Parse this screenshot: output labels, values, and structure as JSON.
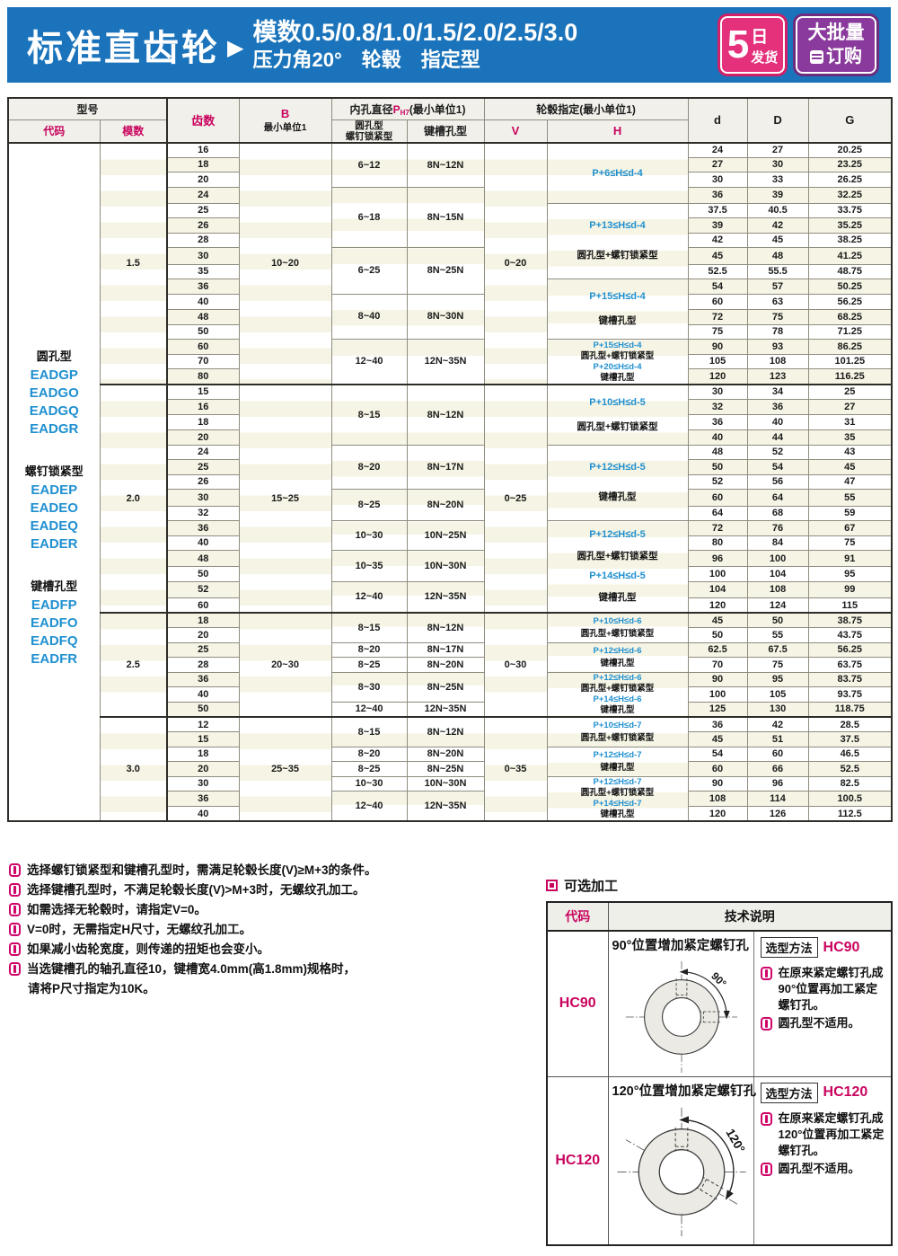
{
  "banner": {
    "title": "标准直齿轮",
    "arrow": "▶",
    "line1": "模数0.5/0.8/1.0/1.5/2.0/2.5/3.0",
    "line2": "压力角20°　轮毂　指定型",
    "badge_day": {
      "big": "5",
      "top": "日",
      "bottom": "发货"
    },
    "badge_bulk": {
      "line1": "大批量",
      "line2": "订购"
    }
  },
  "table": {
    "header": {
      "model": "型号",
      "code": "代码",
      "module": "模数",
      "teeth": "齿数",
      "b_top": "B",
      "b_bottom": "最小单位1",
      "hole_title_pre": "内孔直径",
      "hole_p": "P",
      "hole_sub": "H7",
      "hole_title_post": "(最小单位1)",
      "hole_col1a": "圆孔型",
      "hole_col1b": "螺钉锁紧型",
      "hole_col2": "键槽孔型",
      "hub_title": "轮毂指定(最小单位1)",
      "v": "V",
      "h": "H",
      "d": "d",
      "D": "D",
      "G": "G"
    },
    "code_groups": [
      {
        "title": "圆孔型",
        "codes": [
          "EADGP",
          "EADGO",
          "EADGQ",
          "EADGR"
        ]
      },
      {
        "title": "螺钉锁紧型",
        "codes": [
          "EADEP",
          "EADEO",
          "EADEQ",
          "EADER"
        ]
      },
      {
        "title": "键槽孔型",
        "codes": [
          "EADFP",
          "EADFO",
          "EADFQ",
          "EADFR"
        ]
      }
    ],
    "modules": [
      {
        "module": "1.5",
        "b": "10~20",
        "v": "0~20",
        "teeth": [
          "16",
          "18",
          "20",
          "24",
          "25",
          "26",
          "28",
          "30",
          "35",
          "36",
          "40",
          "48",
          "50",
          "60",
          "70",
          "80"
        ],
        "d": [
          "24",
          "27",
          "30",
          "36",
          "37.5",
          "39",
          "42",
          "45",
          "52.5",
          "54",
          "60",
          "72",
          "75",
          "90",
          "105",
          "120"
        ],
        "D": [
          "27",
          "30",
          "33",
          "39",
          "40.5",
          "42",
          "45",
          "48",
          "55.5",
          "57",
          "63",
          "75",
          "78",
          "93",
          "108",
          "123"
        ],
        "G": [
          "20.25",
          "23.25",
          "26.25",
          "32.25",
          "33.75",
          "35.25",
          "38.25",
          "41.25",
          "48.75",
          "50.25",
          "56.25",
          "68.25",
          "71.25",
          "86.25",
          "101.25",
          "116.25"
        ],
        "holes": [
          {
            "span": 3,
            "round": "6~12",
            "key": "8N~12N"
          },
          {
            "span": 4,
            "round": "6~18",
            "key": "8N~15N"
          },
          {
            "span": 3,
            "round": "6~25",
            "key": "8N~25N"
          },
          {
            "span": 3,
            "round": "8~40",
            "key": "8N~30N"
          },
          {
            "span": 3,
            "round": "12~40",
            "key": "12N~35N"
          }
        ],
        "hub": [
          {
            "span": 4,
            "lines": [
              [
                "P+6≤H≤d-4",
                "blue"
              ]
            ]
          },
          {
            "span": 5,
            "lines": [
              [
                "P+13≤H≤d-4",
                "blue"
              ],
              [
                "圆孔型+螺钉锁紧型",
                "blk"
              ]
            ]
          },
          {
            "span": 4,
            "lines": [
              [
                "P+15≤H≤d-4",
                "blue"
              ],
              [
                "键槽孔型",
                "blk"
              ]
            ]
          },
          {
            "span": 3,
            "small": true,
            "lines": [
              [
                "P+15≤H≤d-4",
                "blue"
              ],
              [
                "圆孔型+螺钉锁紧型",
                "blk"
              ],
              [
                "P+20≤H≤d-4",
                "blue"
              ],
              [
                "键槽孔型",
                "blk"
              ]
            ]
          }
        ]
      },
      {
        "module": "2.0",
        "b": "15~25",
        "v": "0~25",
        "teeth": [
          "15",
          "16",
          "18",
          "20",
          "24",
          "25",
          "26",
          "30",
          "32",
          "36",
          "40",
          "48",
          "50",
          "52",
          "60"
        ],
        "d": [
          "30",
          "32",
          "36",
          "40",
          "48",
          "50",
          "52",
          "60",
          "64",
          "72",
          "80",
          "96",
          "100",
          "104",
          "120"
        ],
        "D": [
          "34",
          "36",
          "40",
          "44",
          "52",
          "54",
          "56",
          "64",
          "68",
          "76",
          "84",
          "100",
          "104",
          "108",
          "124"
        ],
        "G": [
          "25",
          "27",
          "31",
          "35",
          "43",
          "45",
          "47",
          "55",
          "59",
          "67",
          "75",
          "91",
          "95",
          "99",
          "115"
        ],
        "holes": [
          {
            "span": 4,
            "round": "8~15",
            "key": "8N~12N"
          },
          {
            "span": 3,
            "round": "8~20",
            "key": "8N~17N"
          },
          {
            "span": 2,
            "round": "8~25",
            "key": "8N~20N"
          },
          {
            "span": 2,
            "round": "10~30",
            "key": "10N~25N"
          },
          {
            "span": 2,
            "round": "10~35",
            "key": "10N~30N"
          },
          {
            "span": 2,
            "round": "12~40",
            "key": "12N~35N"
          }
        ],
        "hub": [
          {
            "span": 4,
            "lines": [
              [
                "P+10≤H≤d-5",
                "blue"
              ],
              [
                "圆孔型+螺钉锁紧型",
                "blk"
              ]
            ]
          },
          {
            "span": 5,
            "lines": [
              [
                "P+12≤H≤d-5",
                "blue"
              ],
              [
                "键槽孔型",
                "blk"
              ]
            ]
          },
          {
            "span": 6,
            "lines": [
              [
                "P+12≤H≤d-5",
                "blue"
              ],
              [
                "圆孔型+螺钉锁紧型",
                "blk"
              ],
              [
                "P+14≤H≤d-5",
                "blue"
              ],
              [
                "键槽孔型",
                "blk"
              ]
            ]
          }
        ]
      },
      {
        "module": "2.5",
        "b": "20~30",
        "v": "0~30",
        "teeth": [
          "18",
          "20",
          "25",
          "28",
          "36",
          "40",
          "50"
        ],
        "d": [
          "45",
          "50",
          "62.5",
          "70",
          "90",
          "100",
          "125"
        ],
        "D": [
          "50",
          "55",
          "67.5",
          "75",
          "95",
          "105",
          "130"
        ],
        "G": [
          "38.75",
          "43.75",
          "56.25",
          "63.75",
          "83.75",
          "93.75",
          "118.75"
        ],
        "holes": [
          {
            "span": 2,
            "round": "8~15",
            "key": "8N~12N"
          },
          {
            "span": 1,
            "round": "8~20",
            "key": "8N~17N"
          },
          {
            "span": 1,
            "round": "8~25",
            "key": "8N~20N"
          },
          {
            "span": 2,
            "round": "8~30",
            "key": "8N~25N"
          },
          {
            "span": 1,
            "round": "12~40",
            "key": "12N~35N"
          }
        ],
        "hub": [
          {
            "span": 2,
            "small": true,
            "lines": [
              [
                "P+10≤H≤d-6",
                "blue"
              ],
              [
                "圆孔型+螺钉锁紧型",
                "blk"
              ]
            ]
          },
          {
            "span": 2,
            "small": true,
            "lines": [
              [
                "P+12≤H≤d-6",
                "blue"
              ],
              [
                "键槽孔型",
                "blk"
              ]
            ]
          },
          {
            "span": 3,
            "small": true,
            "lines": [
              [
                "P+12≤H≤d-6",
                "blue"
              ],
              [
                "圆孔型+螺钉锁紧型",
                "blk"
              ],
              [
                "P+14≤H≤d-6",
                "blue"
              ],
              [
                "键槽孔型",
                "blk"
              ]
            ]
          }
        ]
      },
      {
        "module": "3.0",
        "b": "25~35",
        "v": "0~35",
        "teeth": [
          "12",
          "15",
          "18",
          "20",
          "30",
          "36",
          "40"
        ],
        "d": [
          "36",
          "45",
          "54",
          "60",
          "90",
          "108",
          "120"
        ],
        "D": [
          "42",
          "51",
          "60",
          "66",
          "96",
          "114",
          "126"
        ],
        "G": [
          "28.5",
          "37.5",
          "46.5",
          "52.5",
          "82.5",
          "100.5",
          "112.5"
        ],
        "holes": [
          {
            "span": 2,
            "round": "8~15",
            "key": "8N~12N"
          },
          {
            "span": 1,
            "round": "8~20",
            "key": "8N~20N"
          },
          {
            "span": 1,
            "round": "8~25",
            "key": "8N~25N"
          },
          {
            "span": 1,
            "round": "10~30",
            "key": "10N~30N"
          },
          {
            "span": 2,
            "round": "12~40",
            "key": "12N~35N"
          }
        ],
        "hub": [
          {
            "span": 2,
            "small": true,
            "lines": [
              [
                "P+10≤H≤d-7",
                "blue"
              ],
              [
                "圆孔型+螺钉锁紧型",
                "blk"
              ]
            ]
          },
          {
            "span": 2,
            "small": true,
            "lines": [
              [
                "P+12≤H≤d-7",
                "blue"
              ],
              [
                "键槽孔型",
                "blk"
              ]
            ]
          },
          {
            "span": 3,
            "small": true,
            "lines": [
              [
                "P+12≤H≤d-7",
                "blue"
              ],
              [
                "圆孔型+螺钉锁紧型",
                "blk"
              ],
              [
                "P+14≤H≤d-7",
                "blue"
              ],
              [
                "键槽孔型",
                "blk"
              ]
            ]
          }
        ]
      }
    ]
  },
  "notes": [
    [
      "选择螺钉锁紧型和键槽孔型时，需满足轮毂长度(V)≥M+3的条件。"
    ],
    [
      "选择键槽孔型时，不满足轮毂长度(V)>M+3时，无螺纹孔加工。"
    ],
    [
      "如需选择无轮毂时，请指定V=0。"
    ],
    [
      "V=0时，无需指定H尺寸，无螺纹孔加工。"
    ],
    [
      "如果减小齿轮宽度，则传递的扭矩也会变小。"
    ],
    [
      "当选键槽孔的轴孔直径10，键槽宽4.0mm(高1.8mm)规格时，",
      "请将P尺寸指定为10K。"
    ]
  ],
  "optional": {
    "title": "可选加工",
    "col_code": "代码",
    "col_desc": "技术说明",
    "rows": [
      {
        "code": "HC90",
        "title": "90°位置增加紧定螺钉孔",
        "method_label": "选型方法",
        "method_code": "HC90",
        "angle_label": "90°",
        "notes": [
          "在原来紧定螺钉孔成90°位置再加工紧定螺钉孔。",
          "圆孔型不适用。"
        ]
      },
      {
        "code": "HC120",
        "title": "120°位置增加紧定螺钉孔",
        "method_label": "选型方法",
        "method_code": "HC120",
        "angle_label": "120°",
        "notes": [
          "在原来紧定螺钉孔成120°位置再加工紧定螺钉孔。",
          "圆孔型不适用。"
        ]
      }
    ]
  },
  "colors": {
    "banner_blue": "#1b74bb",
    "accent_magenta": "#c9045f",
    "data_blue": "#2090d0",
    "badge_pink": "#e5317c",
    "badge_purple": "#8a3a9c"
  }
}
